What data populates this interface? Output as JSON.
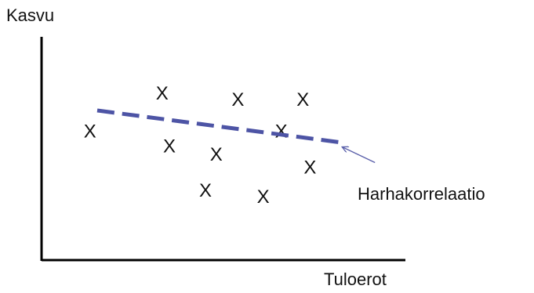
{
  "chart_data": {
    "type": "scatter",
    "title": "",
    "xlabel": "Tuloerot",
    "ylabel": "Kasvu",
    "marker": "X",
    "points": [
      {
        "x": 1.3,
        "y": 6.0
      },
      {
        "x": 3.3,
        "y": 7.8
      },
      {
        "x": 3.5,
        "y": 5.3
      },
      {
        "x": 4.5,
        "y": 3.2
      },
      {
        "x": 4.8,
        "y": 4.9
      },
      {
        "x": 5.4,
        "y": 7.5
      },
      {
        "x": 6.1,
        "y": 2.9
      },
      {
        "x": 6.6,
        "y": 6.0
      },
      {
        "x": 7.2,
        "y": 7.5
      },
      {
        "x": 7.4,
        "y": 4.3
      }
    ],
    "trend_line": {
      "style": "dashed",
      "from": {
        "x": 1.5,
        "y": 7.0
      },
      "to": {
        "x": 8.2,
        "y": 5.5
      }
    },
    "annotation": {
      "text": "Harhakorrelaatio",
      "points_to": {
        "x": 8.2,
        "y": 5.5
      }
    },
    "xlim": [
      0,
      10
    ],
    "ylim": [
      0,
      10
    ],
    "grid": false,
    "colors": {
      "trend_line": "#4d54a5",
      "markers": "#111111",
      "axes": "#000000"
    }
  }
}
